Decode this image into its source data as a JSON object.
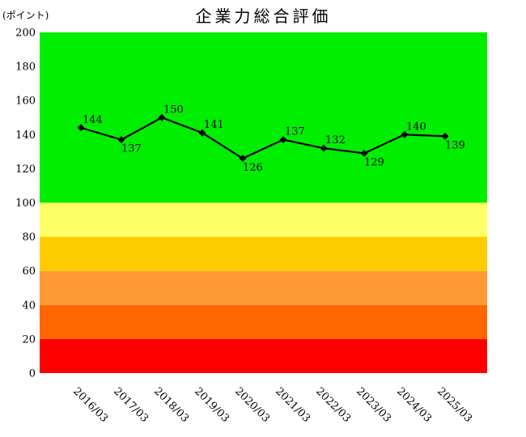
{
  "chart_data": {
    "type": "line",
    "title": "企業力総合評価",
    "unit_label": "(ポイント)",
    "categories": [
      "2016/03",
      "2017/03",
      "2018/03",
      "2019/03",
      "2020/03",
      "2021/03",
      "2022/03",
      "2023/03",
      "2024/03",
      "2025/03"
    ],
    "series": [
      {
        "name": "企業力総合評価",
        "values": [
          144,
          137,
          150,
          141,
          126,
          137,
          132,
          129,
          140,
          139
        ],
        "label_positions": [
          "above",
          "below",
          "above",
          "above",
          "below",
          "above",
          "above",
          "below",
          "above",
          "below"
        ],
        "line_color": "#000000",
        "marker": "diamond"
      }
    ],
    "ylim": [
      0,
      200
    ],
    "yticks": [
      0,
      20,
      40,
      60,
      80,
      100,
      120,
      140,
      160,
      180,
      200
    ],
    "grid": false,
    "legend_position": "none",
    "background_bands": [
      {
        "from": 0,
        "to": 20,
        "color": "#ff0000"
      },
      {
        "from": 20,
        "to": 40,
        "color": "#ff6600"
      },
      {
        "from": 40,
        "to": 60,
        "color": "#ff9933"
      },
      {
        "from": 60,
        "to": 80,
        "color": "#ffcc00"
      },
      {
        "from": 80,
        "to": 100,
        "color": "#ffff66"
      },
      {
        "from": 100,
        "to": 200,
        "color": "#00ee00"
      }
    ],
    "x_tick_rotation_deg": 45
  }
}
